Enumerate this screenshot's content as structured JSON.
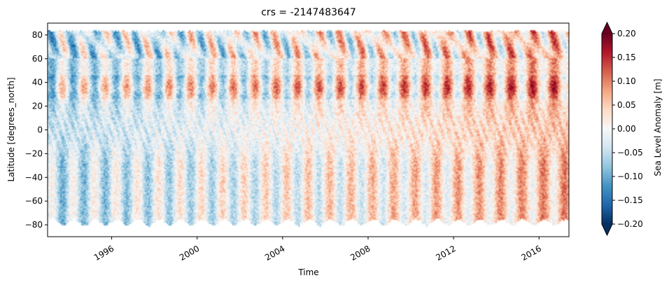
{
  "chart_data": {
    "type": "heatmap",
    "title": "crs = -2147483647",
    "xlabel": "Time",
    "ylabel": "Latitude [degrees_north]",
    "x_range": [
      1993.0,
      2017.4
    ],
    "y_range": [
      -90,
      90
    ],
    "x_ticks": [
      1996,
      2000,
      2004,
      2008,
      2012,
      2016
    ],
    "x_tick_labels": [
      "1996",
      "2000",
      "2004",
      "2008",
      "2012",
      "2016"
    ],
    "y_ticks": [
      -80,
      -60,
      -40,
      -20,
      0,
      20,
      40,
      60,
      80
    ],
    "y_tick_labels": [
      "−80",
      "−60",
      "−40",
      "−20",
      "0",
      "20",
      "40",
      "60",
      "80"
    ],
    "data_lat_range": [
      -78,
      84
    ],
    "colorbar": {
      "label": "Sea Level Anomaly [m]",
      "colormap": "RdBu_r",
      "vmin": -0.2,
      "vmax": 0.2,
      "extend": "both",
      "ticks": [
        -0.2,
        -0.15,
        -0.1,
        -0.05,
        0.0,
        0.05,
        0.1,
        0.15,
        0.2
      ],
      "tick_labels": [
        "−0.20",
        "−0.15",
        "−0.10",
        "−0.05",
        "0.00",
        "0.05",
        "0.10",
        "0.15",
        "0.20"
      ],
      "colors": [
        "#053061",
        "#2166ac",
        "#4393c3",
        "#92c5de",
        "#d1e5f0",
        "#f7f7f7",
        "#fddbc7",
        "#f4a582",
        "#d6604d",
        "#b2182b",
        "#67001f"
      ]
    },
    "grid": false,
    "legend": "none"
  }
}
